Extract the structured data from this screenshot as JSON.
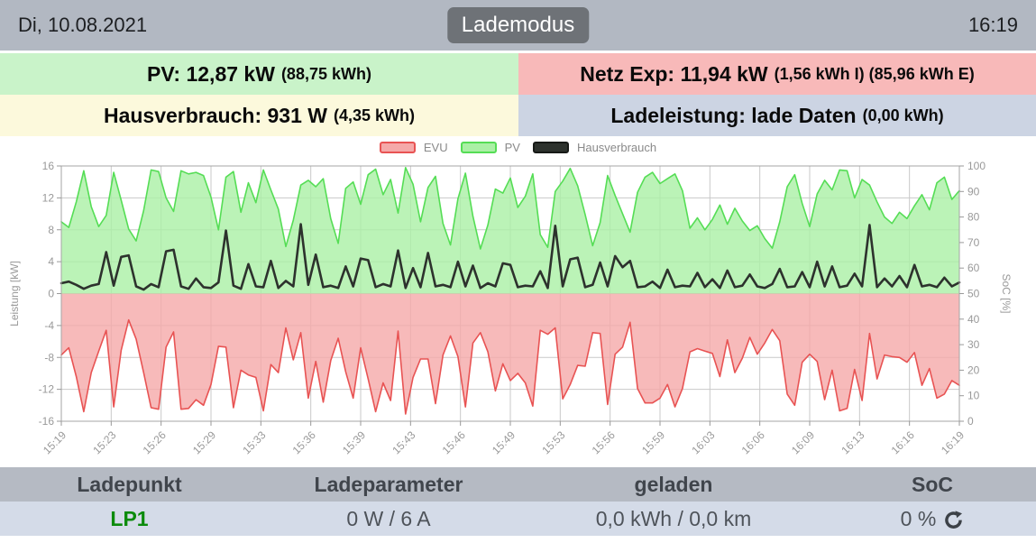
{
  "header": {
    "date": "Di, 10.08.2021",
    "mode_button_label": "Lademodus",
    "time": "16:19"
  },
  "info_boxes": {
    "pv": {
      "main": "PV: 12,87 kW",
      "sub": "(88,75 kWh)",
      "bg": "#c9f3c9"
    },
    "netz": {
      "main": "Netz Exp: 11,94 kW",
      "sub": "(1,56 kWh I) (85,96 kWh E)",
      "bg": "#f8b9b9"
    },
    "hausverbrauch": {
      "main": "Hausverbrauch: 931 W",
      "sub": "(4,35 kWh)",
      "bg": "#fcf9dc"
    },
    "ladeleistung": {
      "main": "Ladeleistung: lade Daten",
      "sub": "(0,00 kWh)",
      "bg": "#ccd4e3"
    }
  },
  "chart_data": {
    "type": "area",
    "title": "",
    "ylabel_left": "Leistung [kW]",
    "ylabel_right": "SoC [%]",
    "ylim_left": [
      -16,
      16
    ],
    "ylim_right": [
      0,
      100
    ],
    "yticks_left": [
      16,
      12,
      8,
      4,
      0,
      -4,
      -8,
      -12,
      -16
    ],
    "yticks_right": [
      100,
      90,
      80,
      70,
      60,
      50,
      40,
      30,
      20,
      10,
      0
    ],
    "grid": true,
    "legend_position": "top",
    "x_tick_labels": [
      "15:19",
      "15:23",
      "15:26",
      "15:29",
      "15:33",
      "15:36",
      "15:39",
      "15:43",
      "15:46",
      "15:49",
      "15:53",
      "15:56",
      "15:59",
      "16:03",
      "16:06",
      "16:09",
      "16:13",
      "16:16",
      "16:19"
    ],
    "series": [
      {
        "name": "EVU",
        "color": "#e85353",
        "fill": "#f5a9a9",
        "values": [
          -7.7,
          -6.8,
          -10.4,
          -14.8,
          -9.9,
          -7.2,
          -4.6,
          -14.2,
          -7.1,
          -3.3,
          -5.7,
          -9.9,
          -14.3,
          -14.5,
          -6.7,
          -4.8,
          -14.5,
          -14.4,
          -13.3,
          -14.0,
          -11.4,
          -6.6,
          -6.7,
          -14.3,
          -9.6,
          -10.2,
          -10.5,
          -14.7,
          -8.9,
          -9.9,
          -4.3,
          -8.3,
          -4.9,
          -13.1,
          -8.5,
          -13.6,
          -8.4,
          -5.6,
          -9.8,
          -13.1,
          -6.8,
          -10.7,
          -14.8,
          -11.2,
          -13.4,
          -4.7,
          -15.1,
          -10.5,
          -8.2,
          -8.2,
          -13.8,
          -7.7,
          -5.3,
          -7.9,
          -14.2,
          -6.2,
          -4.9,
          -7.3,
          -12.2,
          -8.8,
          -10.9,
          -10.0,
          -11.2,
          -14.1,
          -4.6,
          -5.1,
          -4.3,
          -13.2,
          -11.4,
          -9.0,
          -9.1,
          -4.9,
          -5.0,
          -13.9,
          -7.6,
          -6.7,
          -3.6,
          -11.9,
          -13.7,
          -13.7,
          -13.1,
          -11.4,
          -14.2,
          -11.9,
          -7.3,
          -6.9,
          -7.2,
          -7.5,
          -10.4,
          -5.8,
          -9.9,
          -8.1,
          -5.5,
          -7.6,
          -6.2,
          -4.5,
          -5.9,
          -12.6,
          -14.0,
          -8.6,
          -7.6,
          -8.5,
          -13.3,
          -9.6,
          -14.7,
          -14.4,
          -9.5,
          -13.4,
          -5.0,
          -10.7,
          -7.7,
          -7.9,
          -8.0,
          -8.6,
          -7.4,
          -11.5,
          -9.4,
          -13.1,
          -12.6,
          -10.9,
          -11.5
        ]
      },
      {
        "name": "PV",
        "color": "#55dd55",
        "fill": "#aaf0a5",
        "values": [
          9.0,
          8.3,
          11.5,
          15.4,
          10.9,
          8.4,
          9.8,
          15.2,
          11.7,
          8.1,
          6.6,
          10.4,
          15.5,
          15.3,
          12.0,
          10.3,
          15.4,
          15.0,
          15.2,
          14.8,
          12.1,
          8.0,
          14.6,
          15.3,
          10.2,
          13.9,
          11.4,
          15.5,
          13.0,
          10.6,
          5.9,
          9.2,
          13.6,
          14.2,
          13.4,
          14.4,
          9.4,
          6.3,
          13.2,
          14.0,
          11.2,
          14.9,
          15.6,
          12.4,
          14.3,
          10.1,
          15.8,
          13.7,
          9.0,
          13.3,
          14.7,
          8.8,
          6.1,
          11.9,
          15.1,
          9.7,
          5.6,
          8.6,
          13.1,
          12.6,
          14.5,
          10.8,
          12.2,
          15.0,
          7.4,
          5.8,
          12.8,
          14.1,
          15.7,
          13.5,
          9.9,
          6.0,
          8.9,
          14.8,
          12.3,
          10.0,
          7.7,
          12.7,
          14.6,
          15.2,
          13.8,
          14.4,
          15.0,
          12.9,
          8.2,
          9.5,
          8.0,
          9.3,
          11.1,
          8.7,
          10.7,
          9.1,
          7.9,
          8.5,
          6.9,
          5.7,
          9.0,
          13.4,
          14.9,
          11.3,
          8.4,
          12.5,
          14.2,
          13.0,
          15.5,
          15.4,
          12.0,
          14.3,
          13.6,
          11.5,
          9.6,
          8.8,
          10.2,
          9.4,
          11.0,
          12.4,
          10.5,
          13.9,
          14.6,
          11.8,
          12.9
        ]
      },
      {
        "name": "Hausverbrauch",
        "color": "#2d322d",
        "fill": null,
        "values": [
          1.3,
          1.5,
          1.1,
          0.6,
          1.0,
          1.2,
          5.2,
          1.0,
          4.6,
          4.8,
          0.9,
          0.5,
          1.2,
          0.8,
          5.3,
          5.5,
          0.9,
          0.6,
          1.9,
          0.8,
          0.7,
          1.4,
          7.9,
          1.0,
          0.6,
          3.7,
          0.9,
          0.8,
          4.1,
          0.7,
          1.6,
          0.9,
          8.7,
          1.1,
          4.9,
          0.8,
          1.0,
          0.7,
          3.4,
          0.9,
          4.4,
          4.2,
          0.8,
          1.2,
          0.9,
          5.4,
          0.7,
          3.2,
          0.8,
          5.1,
          0.9,
          1.1,
          0.8,
          4.0,
          0.9,
          3.5,
          0.7,
          1.3,
          0.9,
          3.8,
          3.6,
          0.8,
          1.0,
          0.9,
          2.8,
          0.7,
          8.5,
          0.9,
          4.3,
          4.5,
          0.8,
          1.1,
          3.9,
          0.9,
          4.7,
          3.3,
          4.1,
          0.8,
          0.9,
          1.5,
          0.7,
          3.0,
          0.8,
          1.0,
          0.9,
          2.6,
          0.8,
          1.8,
          0.7,
          2.9,
          0.8,
          1.0,
          2.4,
          0.9,
          0.7,
          1.2,
          3.1,
          0.8,
          0.9,
          2.7,
          0.8,
          4.0,
          0.9,
          3.4,
          0.8,
          1.0,
          2.5,
          0.9,
          8.6,
          0.8,
          1.9,
          0.9,
          2.2,
          0.8,
          3.6,
          0.9,
          1.1,
          0.8,
          2.0,
          0.9,
          1.4
        ]
      }
    ]
  },
  "table": {
    "headers": [
      "Ladepunkt",
      "Ladeparameter",
      "geladen",
      "SoC"
    ],
    "rows": [
      {
        "ladepunkt": "LP1",
        "ladeparameter": "0 W / 6 A",
        "geladen": "0,0 kWh / 0,0 km",
        "soc": "0 %"
      }
    ]
  },
  "colors": {
    "topbar_bg": "#b2b8c2",
    "mode_button_bg": "#6e7277",
    "table_header_bg": "#b5bac3",
    "table_row_bg": "#d4dbe8",
    "lp_name_green": "#0c8b0c",
    "evu_line": "#e85353",
    "pv_line": "#55dd55",
    "haus_line": "#2d322d"
  }
}
